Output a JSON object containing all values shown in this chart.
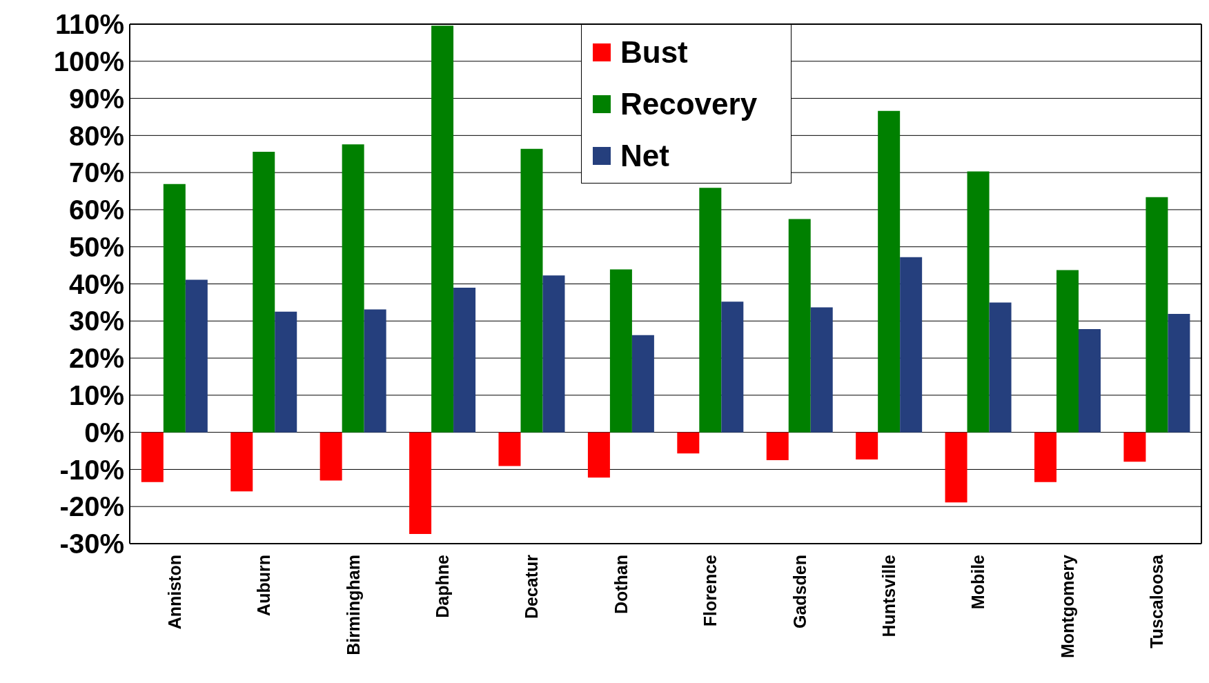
{
  "chart_data": {
    "type": "bar",
    "categories": [
      "Anniston",
      "Auburn",
      "Birmingham",
      "Daphne",
      "Decatur",
      "Dothan",
      "Florence",
      "Gadsden",
      "Huntsville",
      "Mobile",
      "Montgomery",
      "Tuscaloosa"
    ],
    "series": [
      {
        "name": "Bust",
        "color": "#ff0000",
        "values": [
          -13.4,
          -15.9,
          -13,
          -27.4,
          -9.1,
          -12.2,
          -5.7,
          -7.5,
          -7.3,
          -18.9,
          -13.4,
          -7.9
        ]
      },
      {
        "name": "Recovery",
        "color": "#008000",
        "values": [
          66.9,
          75.6,
          77.6,
          109.6,
          76.4,
          43.9,
          65.9,
          57.5,
          86.6,
          70.3,
          43.7,
          63.4
        ]
      },
      {
        "name": "Net",
        "color": "#253f7d",
        "values": [
          41.1,
          32.5,
          33.1,
          39,
          42.3,
          26.2,
          35.2,
          33.7,
          47.2,
          35,
          27.8,
          31.9
        ]
      }
    ],
    "ylim": [
      -30,
      110
    ],
    "yticks": [
      {
        "value": -30,
        "label": "-30%"
      },
      {
        "value": -20,
        "label": "-20%"
      },
      {
        "value": -10,
        "label": "-10%"
      },
      {
        "value": 0,
        "label": "0%"
      },
      {
        "value": 10,
        "label": "10%"
      },
      {
        "value": 20,
        "label": "20%"
      },
      {
        "value": 30,
        "label": "30%"
      },
      {
        "value": 40,
        "label": "40%"
      },
      {
        "value": 50,
        "label": "50%"
      },
      {
        "value": 60,
        "label": "60%"
      },
      {
        "value": 70,
        "label": "70%"
      },
      {
        "value": 80,
        "label": "80%"
      },
      {
        "value": 90,
        "label": "90%"
      },
      {
        "value": 100,
        "label": "100%"
      },
      {
        "value": 110,
        "label": "110%"
      }
    ],
    "grid": "y",
    "legend": "top"
  }
}
